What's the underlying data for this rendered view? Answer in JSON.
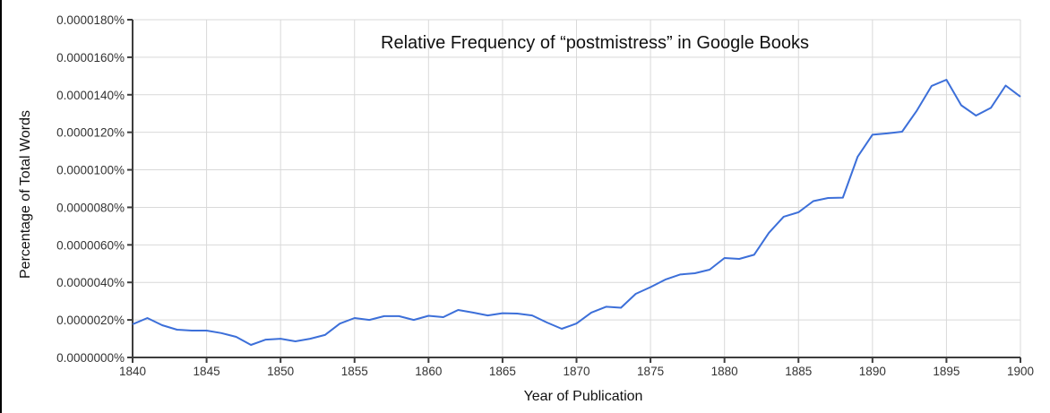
{
  "chart_data": {
    "type": "line",
    "title": "Relative Frequency of “postmistress” in Google Books",
    "xlabel": "Year of Publication",
    "ylabel": "Percentage of Total Words",
    "xlim": [
      1840,
      1900
    ],
    "ylim": [
      0,
      1.8e-05
    ],
    "grid": true,
    "legend": "none",
    "x_ticks": [
      "1840",
      "1845",
      "1850",
      "1855",
      "1860",
      "1865",
      "1870",
      "1875",
      "1880",
      "1885",
      "1890",
      "1895",
      "1900"
    ],
    "y_ticks": [
      "0.0000000%",
      "0.0000020%",
      "0.0000040%",
      "0.0000060%",
      "0.0000080%",
      "0.0000100%",
      "0.0000120%",
      "0.0000140%",
      "0.0000160%",
      "0.0000180%"
    ],
    "series": [
      {
        "name": "postmistress",
        "color": "#3c6fd9",
        "x": [
          1840,
          1841,
          1842,
          1843,
          1844,
          1845,
          1846,
          1847,
          1848,
          1849,
          1850,
          1851,
          1852,
          1853,
          1854,
          1855,
          1856,
          1857,
          1858,
          1859,
          1860,
          1861,
          1862,
          1863,
          1864,
          1865,
          1866,
          1867,
          1868,
          1869,
          1870,
          1871,
          1872,
          1873,
          1874,
          1875,
          1876,
          1877,
          1878,
          1879,
          1880,
          1881,
          1882,
          1883,
          1884,
          1885,
          1886,
          1887,
          1888,
          1889,
          1890,
          1891,
          1892,
          1893,
          1894,
          1895,
          1896,
          1897,
          1898,
          1899,
          1900
        ],
        "values": [
          1.77e-06,
          2.1e-06,
          1.72e-06,
          1.48e-06,
          1.43e-06,
          1.43e-06,
          1.3e-06,
          1.1e-06,
          6.7e-07,
          9.5e-07,
          1e-06,
          8.6e-07,
          1e-06,
          1.2e-06,
          1.8e-06,
          2.1e-06,
          2e-06,
          2.2e-06,
          2.2e-06,
          2e-06,
          2.22e-06,
          2.15e-06,
          2.53e-06,
          2.39e-06,
          2.24e-06,
          2.36e-06,
          2.34e-06,
          2.24e-06,
          1.86e-06,
          1.53e-06,
          1.81e-06,
          2.39e-06,
          2.7e-06,
          2.65e-06,
          3.39e-06,
          3.75e-06,
          4.15e-06,
          4.42e-06,
          4.49e-06,
          4.68e-06,
          5.3e-06,
          5.25e-06,
          5.47e-06,
          6.64e-06,
          7.5e-06,
          7.74e-06,
          8.33e-06,
          8.5e-06,
          8.52e-06,
          1.07e-05,
          1.187e-05,
          1.194e-05,
          1.203e-05,
          1.316e-05,
          1.447e-05,
          1.48e-05,
          1.344e-05,
          1.289e-05,
          1.33e-05,
          1.449e-05,
          1.39e-05
        ]
      }
    ]
  }
}
